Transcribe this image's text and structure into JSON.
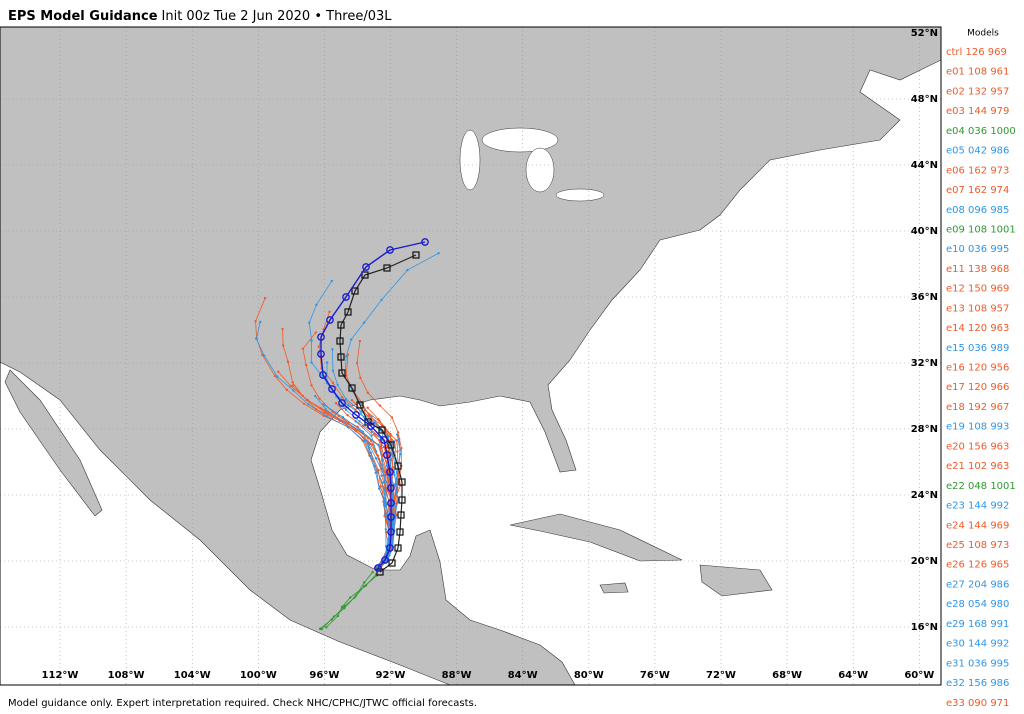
{
  "header": {
    "title": "EPS Model Guidance",
    "subtitle": "Init 00z Tue 2 Jun 2020 • Three/03L"
  },
  "legend": {
    "title": "Models",
    "entries": [
      {
        "label": "ctrl 126 969",
        "color": "#f05a28"
      },
      {
        "label": "e01 108 961",
        "color": "#f05a28"
      },
      {
        "label": "e02 132 957",
        "color": "#f05a28"
      },
      {
        "label": "e03 144 979",
        "color": "#f05a28"
      },
      {
        "label": "e04 036 1000",
        "color": "#2e9a2e"
      },
      {
        "label": "e05 042 986",
        "color": "#2e96e8"
      },
      {
        "label": "e06 162 973",
        "color": "#f05a28"
      },
      {
        "label": "e07 162 974",
        "color": "#f05a28"
      },
      {
        "label": "e08 096 985",
        "color": "#2e96e8"
      },
      {
        "label": "e09 108 1001",
        "color": "#2e9a2e"
      },
      {
        "label": "e10 036 995",
        "color": "#2e96e8"
      },
      {
        "label": "e11 138 968",
        "color": "#f05a28"
      },
      {
        "label": "e12 150 969",
        "color": "#f05a28"
      },
      {
        "label": "e13 108 957",
        "color": "#f05a28"
      },
      {
        "label": "e14 120 963",
        "color": "#f05a28"
      },
      {
        "label": "e15 036 989",
        "color": "#2e96e8"
      },
      {
        "label": "e16 120 956",
        "color": "#f05a28"
      },
      {
        "label": "e17 120 966",
        "color": "#f05a28"
      },
      {
        "label": "e18 192 967",
        "color": "#f05a28"
      },
      {
        "label": "e19 108 993",
        "color": "#2e96e8"
      },
      {
        "label": "e20 156 963",
        "color": "#f05a28"
      },
      {
        "label": "e21 102 963",
        "color": "#f05a28"
      },
      {
        "label": "e22 048 1001",
        "color": "#2e9a2e"
      },
      {
        "label": "e23 144 992",
        "color": "#2e96e8"
      },
      {
        "label": "e24 144 969",
        "color": "#f05a28"
      },
      {
        "label": "e25 108 973",
        "color": "#f05a28"
      },
      {
        "label": "e26 126 965",
        "color": "#f05a28"
      },
      {
        "label": "e27 204 986",
        "color": "#2e96e8"
      },
      {
        "label": "e28 054 980",
        "color": "#2e96e8"
      },
      {
        "label": "e29 168 991",
        "color": "#2e96e8"
      },
      {
        "label": "e30 144 992",
        "color": "#2e96e8"
      },
      {
        "label": "e31 036 995",
        "color": "#2e96e8"
      },
      {
        "label": "e32 156 986",
        "color": "#2e96e8"
      },
      {
        "label": "e33 090 971",
        "color": "#f05a28"
      }
    ]
  },
  "map": {
    "lat_labels": [
      "52°N",
      "48°N",
      "44°N",
      "40°N",
      "36°N",
      "32°N",
      "28°N",
      "24°N",
      "20°N",
      "16°N"
    ],
    "lon_labels": [
      "112°W",
      "108°W",
      "104°W",
      "100°W",
      "96°W",
      "92°W",
      "88°W",
      "84°W",
      "80°W",
      "76°W",
      "72°W",
      "68°W",
      "64°W",
      "60°W"
    ]
  },
  "footer": "Model guidance only. Expert interpretation required. Check NHC/CPHC/JTWC official forecasts."
}
